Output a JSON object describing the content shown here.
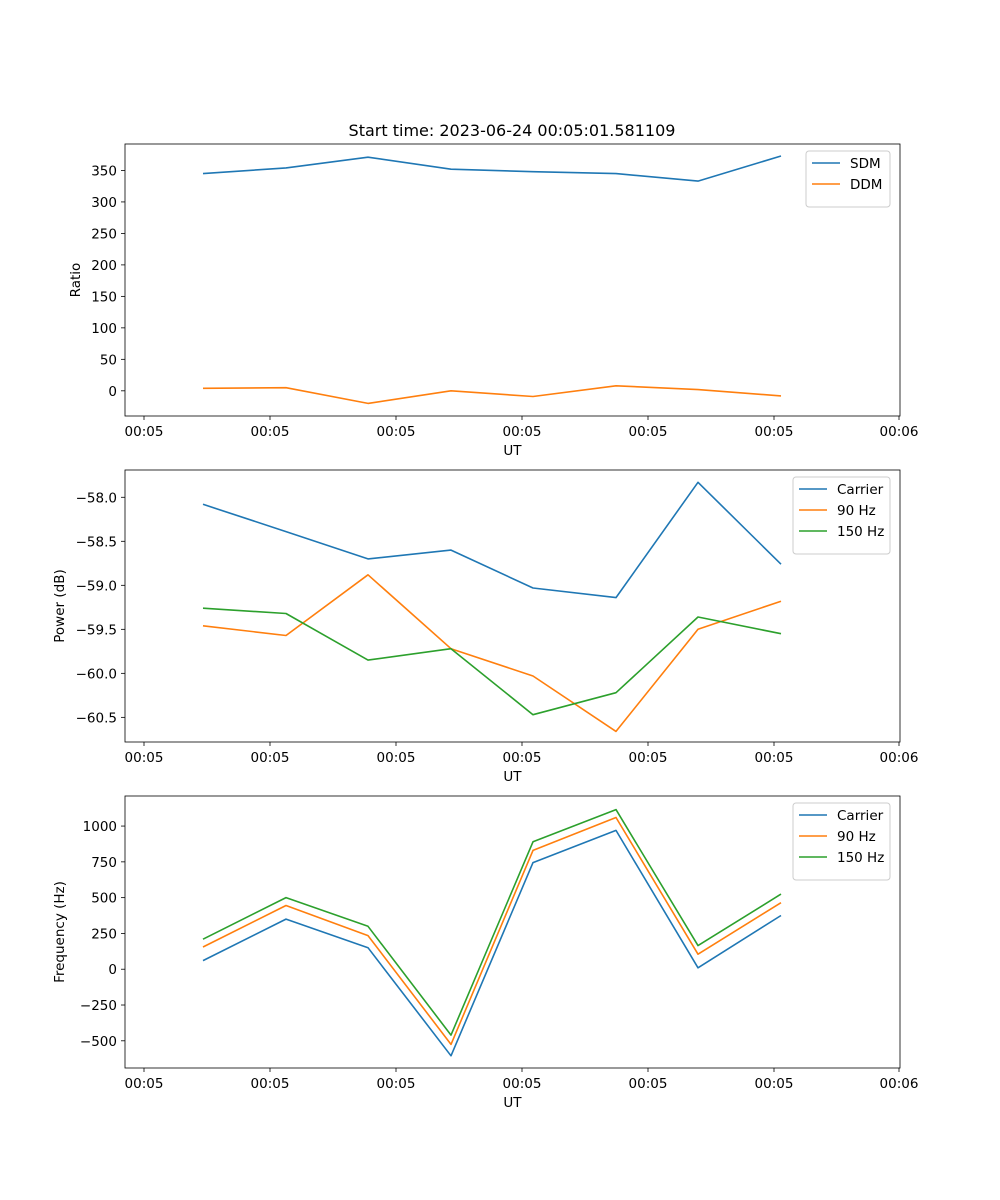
{
  "figure": {
    "title": "Start time: 2023-06-24 00:05:01.581109"
  },
  "colors": {
    "blue": "#1f77b4",
    "orange": "#ff7f0e",
    "green": "#2ca02c"
  },
  "chart_data": [
    {
      "type": "line",
      "xlabel": "UT",
      "ylabel": "Ratio",
      "x_tick_labels": [
        "00:05",
        "00:05",
        "00:05",
        "00:05",
        "00:05",
        "00:05",
        "00:06"
      ],
      "y_ticks": [
        0,
        50,
        100,
        150,
        200,
        250,
        300,
        350
      ],
      "ylim": [
        -40,
        392
      ],
      "legend_position": "upper right",
      "series": [
        {
          "name": "SDM",
          "color": "#1f77b4",
          "values": [
            345,
            354,
            371,
            352,
            348,
            345,
            333,
            373
          ]
        },
        {
          "name": "DDM",
          "color": "#ff7f0e",
          "values": [
            4,
            5,
            -20,
            0,
            -9,
            8,
            2,
            -8
          ]
        }
      ]
    },
    {
      "type": "line",
      "xlabel": "UT",
      "ylabel": "Power (dB)",
      "x_tick_labels": [
        "00:05",
        "00:05",
        "00:05",
        "00:05",
        "00:05",
        "00:05",
        "00:06"
      ],
      "y_ticks": [
        -58.0,
        -58.5,
        -59.0,
        -59.5,
        -60.0,
        -60.5
      ],
      "y_tick_labels": [
        "−58.0",
        "−58.5",
        "−59.0",
        "−59.5",
        "−60.0",
        "−60.5"
      ],
      "ylim": [
        -60.78,
        -57.69
      ],
      "legend_position": "upper right",
      "series": [
        {
          "name": "Carrier",
          "color": "#1f77b4",
          "values": [
            -58.08,
            -58.39,
            -58.7,
            -58.6,
            -59.03,
            -59.14,
            -57.83,
            -58.76
          ]
        },
        {
          "name": "90 Hz",
          "color": "#ff7f0e",
          "values": [
            -59.46,
            -59.57,
            -58.88,
            -59.72,
            -60.03,
            -60.66,
            -59.5,
            -59.18
          ]
        },
        {
          "name": "150 Hz",
          "color": "#2ca02c",
          "values": [
            -59.26,
            -59.32,
            -59.85,
            -59.72,
            -60.47,
            -60.22,
            -59.36,
            -59.55
          ]
        }
      ]
    },
    {
      "type": "line",
      "xlabel": "UT",
      "ylabel": "Frequency (Hz)",
      "x_tick_labels": [
        "00:05",
        "00:05",
        "00:05",
        "00:05",
        "00:05",
        "00:05",
        "00:06"
      ],
      "y_ticks": [
        -500,
        -250,
        0,
        250,
        500,
        750,
        1000
      ],
      "y_tick_labels": [
        "−500",
        "−250",
        "0",
        "250",
        "500",
        "750",
        "1000"
      ],
      "ylim": [
        -690,
        1210
      ],
      "legend_position": "upper right",
      "series": [
        {
          "name": "Carrier",
          "color": "#1f77b4",
          "values": [
            60,
            350,
            150,
            -605,
            745,
            970,
            10,
            375
          ]
        },
        {
          "name": "90 Hz",
          "color": "#ff7f0e",
          "values": [
            155,
            445,
            235,
            -525,
            830,
            1060,
            105,
            465
          ]
        },
        {
          "name": "150 Hz",
          "color": "#2ca02c",
          "values": [
            210,
            500,
            300,
            -460,
            890,
            1115,
            165,
            525
          ]
        }
      ]
    }
  ]
}
